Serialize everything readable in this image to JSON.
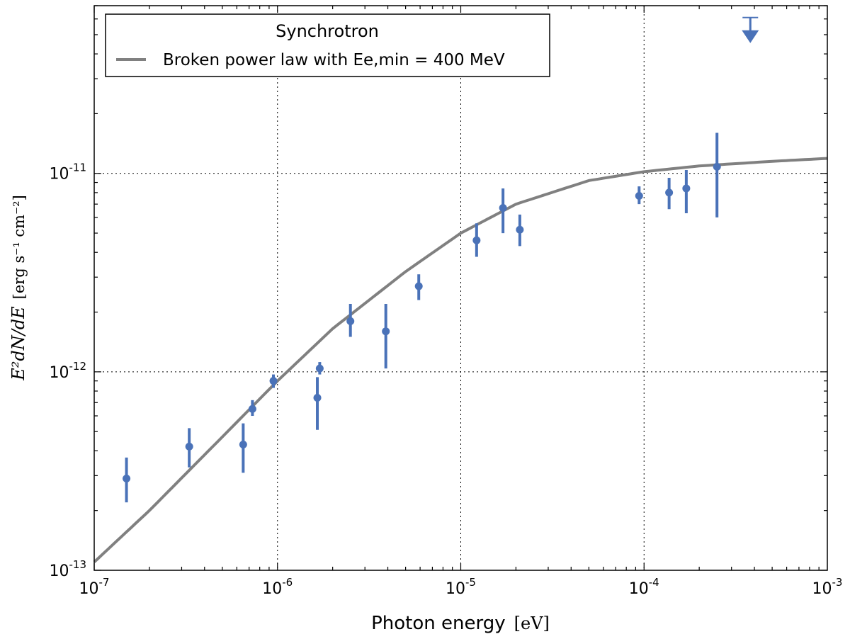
{
  "chart_data": {
    "type": "scatter",
    "x_scale": "log",
    "y_scale": "log",
    "xlim": [
      1e-07,
      0.001
    ],
    "ylim": [
      1e-13,
      7e-11
    ],
    "x_ticks": [
      {
        "base": "10",
        "exp": "-7"
      },
      {
        "base": "10",
        "exp": "-6"
      },
      {
        "base": "10",
        "exp": "-5"
      },
      {
        "base": "10",
        "exp": "-4"
      },
      {
        "base": "10",
        "exp": "-3"
      }
    ],
    "y_ticks": [
      {
        "base": "10",
        "exp": "-13"
      },
      {
        "base": "10",
        "exp": "-12"
      },
      {
        "base": "10",
        "exp": "-11"
      }
    ],
    "xlabel": {
      "text": "Photon energy",
      "unit": "[eV]"
    },
    "ylabel": {
      "math": "E²dN/dE",
      "unit": "[erg s⁻¹ cm⁻²]"
    },
    "grid": true,
    "legend": {
      "title": "Synchrotron",
      "placement": "top-left",
      "entries": [
        {
          "label": "Broken power law with Ee,min = 400 MeV",
          "color": "#808080"
        }
      ]
    },
    "model": {
      "name": "Broken power law with Ee,min = 400 MeV",
      "color": "#808080",
      "x": [
        1e-07,
        2e-07,
        5e-07,
        1e-06,
        2e-06,
        5e-06,
        1e-05,
        2e-05,
        5e-05,
        0.0001,
        0.0002,
        0.0005,
        0.001
      ],
      "y": [
        1.1e-13,
        2e-13,
        4.7e-13,
        9e-13,
        1.65e-12,
        3.2e-12,
        5e-12,
        7e-12,
        9.2e-12,
        1.02e-11,
        1.09e-11,
        1.15e-11,
        1.19e-11
      ]
    },
    "series": [
      {
        "name": "data",
        "color": "#4a72b8",
        "points": [
          {
            "x": 1.5e-07,
            "y": 2.9e-13,
            "ylo": 2.2e-13,
            "yhi": 3.7e-13
          },
          {
            "x": 3.3e-07,
            "y": 4.2e-13,
            "ylo": 3.3e-13,
            "yhi": 5.2e-13
          },
          {
            "x": 6.5e-07,
            "y": 4.3e-13,
            "ylo": 3.1e-13,
            "yhi": 5.5e-13
          },
          {
            "x": 7.3e-07,
            "y": 6.5e-13,
            "ylo": 6e-13,
            "yhi": 7.2e-13
          },
          {
            "x": 9.5e-07,
            "y": 9e-13,
            "ylo": 8.3e-13,
            "yhi": 9.7e-13
          },
          {
            "x": 1.65e-06,
            "y": 7.4e-13,
            "ylo": 5.1e-13,
            "yhi": 9.4e-13
          },
          {
            "x": 1.7e-06,
            "y": 1.04e-12,
            "ylo": 9.7e-13,
            "yhi": 1.12e-12
          },
          {
            "x": 2.5e-06,
            "y": 1.8e-12,
            "ylo": 1.5e-12,
            "yhi": 2.2e-12
          },
          {
            "x": 3.9e-06,
            "y": 1.6e-12,
            "ylo": 1.04e-12,
            "yhi": 2.2e-12
          },
          {
            "x": 5.9e-06,
            "y": 2.7e-12,
            "ylo": 2.3e-12,
            "yhi": 3.1e-12
          },
          {
            "x": 1.22e-05,
            "y": 4.6e-12,
            "ylo": 3.8e-12,
            "yhi": 5.6e-12
          },
          {
            "x": 1.7e-05,
            "y": 6.7e-12,
            "ylo": 5e-12,
            "yhi": 8.4e-12
          },
          {
            "x": 2.1e-05,
            "y": 5.2e-12,
            "ylo": 4.3e-12,
            "yhi": 6.2e-12
          },
          {
            "x": 9.4e-05,
            "y": 7.7e-12,
            "ylo": 7e-12,
            "yhi": 8.6e-12
          },
          {
            "x": 0.000137,
            "y": 8e-12,
            "ylo": 6.6e-12,
            "yhi": 9.5e-12
          },
          {
            "x": 0.00017,
            "y": 8.4e-12,
            "ylo": 6.3e-12,
            "yhi": 1.04e-11
          },
          {
            "x": 0.00025,
            "y": 1.08e-11,
            "ylo": 6e-12,
            "yhi": 1.6e-11
          }
        ],
        "upper_limits": [
          {
            "x": 0.00038,
            "y": 6.1e-11
          }
        ]
      }
    ]
  }
}
